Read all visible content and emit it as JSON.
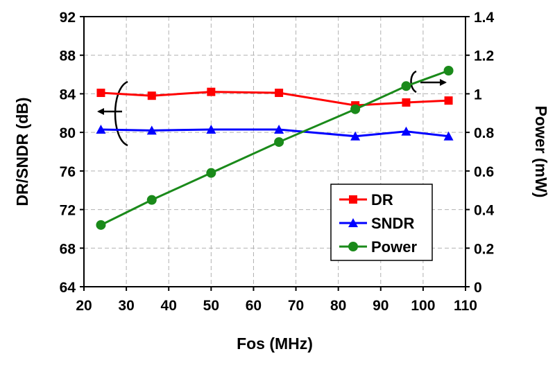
{
  "chart_data": {
    "type": "line",
    "title": "",
    "xlabel": "Fos (MHz)",
    "ylabel_left": "DR/SNDR (dB)",
    "ylabel_right": "Power (mW)",
    "xlim": [
      20,
      110
    ],
    "ylim_left": [
      64,
      92
    ],
    "ylim_right": [
      0,
      1.4
    ],
    "xticks": [
      "20",
      "30",
      "40",
      "50",
      "60",
      "70",
      "80",
      "90",
      "100",
      "110"
    ],
    "yticks_left": [
      "64",
      "68",
      "72",
      "76",
      "80",
      "84",
      "88",
      "92"
    ],
    "yticks_right": [
      "0",
      "0.2",
      "0.4",
      "0.6",
      "0.8",
      "1",
      "1.2",
      "1.4"
    ],
    "grid": true,
    "legend_position": "bottom-right",
    "series": [
      {
        "name": "DR",
        "axis": "left",
        "color": "#ff0000",
        "marker": "square",
        "x": [
          24,
          36,
          50,
          66,
          84,
          96,
          106
        ],
        "y": [
          84.1,
          83.8,
          84.2,
          84.1,
          82.8,
          83.1,
          83.3
        ]
      },
      {
        "name": "SNDR",
        "axis": "left",
        "color": "#0000ff",
        "marker": "triangle",
        "x": [
          24,
          36,
          50,
          66,
          84,
          96,
          106
        ],
        "y": [
          80.3,
          80.2,
          80.3,
          80.3,
          79.6,
          80.1,
          79.6
        ]
      },
      {
        "name": "Power",
        "axis": "right",
        "color": "#1a8a1a",
        "marker": "circle",
        "x": [
          24,
          36,
          50,
          66,
          84,
          96,
          106
        ],
        "y": [
          0.32,
          0.45,
          0.59,
          0.75,
          0.92,
          1.04,
          1.12
        ]
      }
    ]
  }
}
